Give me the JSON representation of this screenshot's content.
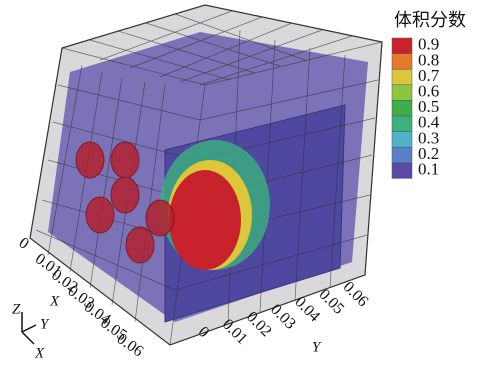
{
  "legend": {
    "title": "体积分数",
    "entries": [
      {
        "label": 0.9,
        "color": "#c8232c"
      },
      {
        "label": 0.8,
        "color": "#e8782e"
      },
      {
        "label": 0.7,
        "color": "#dcc63a"
      },
      {
        "label": 0.6,
        "color": "#8cc63e"
      },
      {
        "label": 0.5,
        "color": "#3fae49"
      },
      {
        "label": 0.4,
        "color": "#3bb27e"
      },
      {
        "label": 0.3,
        "color": "#4fb3c8"
      },
      {
        "label": 0.2,
        "color": "#5a7fc6"
      },
      {
        "label": 0.1,
        "color": "#5a4aa6"
      }
    ]
  },
  "x_axis": {
    "label": "X",
    "ticks": [
      0,
      0.01,
      0.02,
      0.03,
      0.04,
      0.05,
      0.06
    ]
  },
  "y_axis": {
    "label": "Y",
    "ticks": [
      0,
      0.01,
      0.02,
      0.03,
      0.04,
      0.05,
      0.06
    ]
  },
  "triad": {
    "z": "Z",
    "y": "Y",
    "x": "X"
  }
}
